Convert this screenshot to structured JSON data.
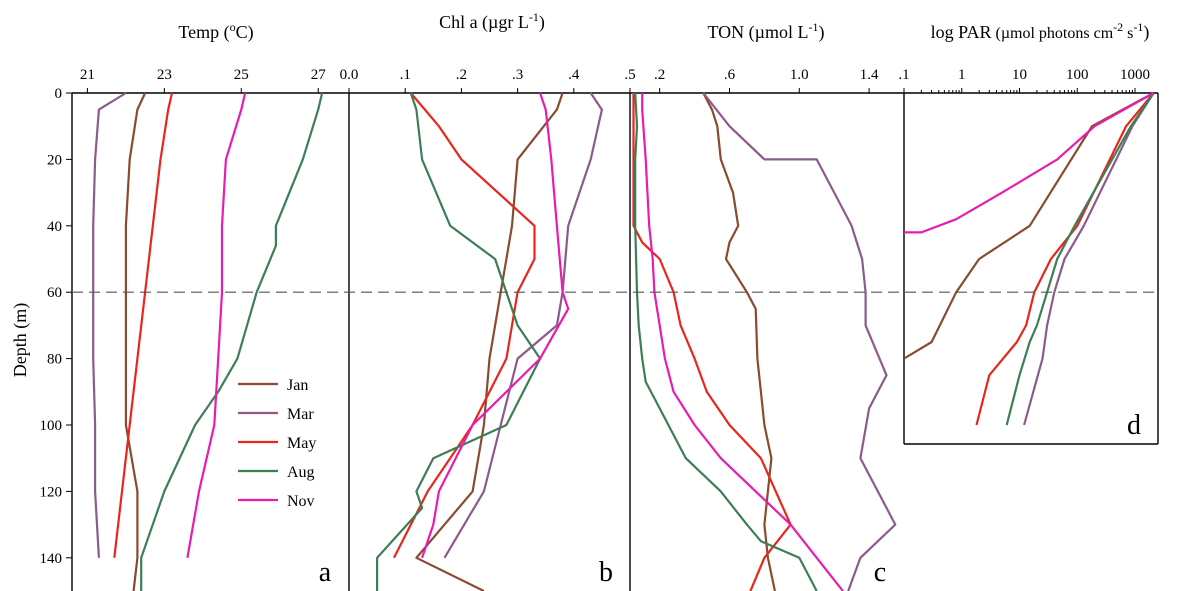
{
  "colors": {
    "Jan": "#8B4A2F",
    "Mar": "#8C5A8C",
    "May": "#E8261C",
    "Aug": "#3E7E57",
    "Nov": "#E81CB0"
  },
  "chart_data": [
    {
      "id": "a",
      "type": "line",
      "title_pre": "Temp (",
      "title_sup": "o",
      "title_post": "C)",
      "xticks": [
        "21",
        "23",
        "25",
        "27"
      ],
      "xlim": [
        20.6,
        27.8
      ],
      "ylim": [
        0,
        150
      ],
      "panel_label": "a",
      "series": [
        {
          "name": "Jan",
          "points": [
            [
              22.5,
              0
            ],
            [
              22.3,
              5
            ],
            [
              22.1,
              20
            ],
            [
              22.0,
              40
            ],
            [
              22.0,
              60
            ],
            [
              22.0,
              80
            ],
            [
              22.0,
              100
            ],
            [
              22.3,
              120
            ],
            [
              22.3,
              140
            ],
            [
              22.2,
              150
            ]
          ]
        },
        {
          "name": "Mar",
          "points": [
            [
              22.0,
              0
            ],
            [
              21.3,
              5
            ],
            [
              21.2,
              20
            ],
            [
              21.15,
              40
            ],
            [
              21.15,
              60
            ],
            [
              21.15,
              80
            ],
            [
              21.2,
              100
            ],
            [
              21.2,
              120
            ],
            [
              21.3,
              140
            ]
          ]
        },
        {
          "name": "May",
          "points": [
            [
              23.2,
              0
            ],
            [
              23.1,
              5
            ],
            [
              22.9,
              20
            ],
            [
              22.7,
              40
            ],
            [
              22.5,
              60
            ],
            [
              22.3,
              80
            ],
            [
              22.1,
              100
            ],
            [
              21.9,
              120
            ],
            [
              21.7,
              140
            ]
          ]
        },
        {
          "name": "Aug",
          "points": [
            [
              27.1,
              0
            ],
            [
              27.0,
              5
            ],
            [
              26.6,
              20
            ],
            [
              25.9,
              40
            ],
            [
              25.9,
              46
            ],
            [
              25.4,
              60
            ],
            [
              24.9,
              80
            ],
            [
              24.4,
              90
            ],
            [
              23.8,
              100
            ],
            [
              23.0,
              120
            ],
            [
              22.4,
              140
            ],
            [
              22.4,
              150
            ]
          ]
        },
        {
          "name": "Nov",
          "points": [
            [
              25.1,
              0
            ],
            [
              25.0,
              5
            ],
            [
              24.6,
              20
            ],
            [
              24.5,
              40
            ],
            [
              24.5,
              60
            ],
            [
              24.4,
              80
            ],
            [
              24.3,
              100
            ],
            [
              23.9,
              120
            ],
            [
              23.6,
              140
            ]
          ]
        }
      ]
    },
    {
      "id": "b",
      "type": "line",
      "title_pre": "Chl a (µgr L",
      "title_sup": "-1",
      "title_post": ")",
      "xticks": [
        "0.0",
        ".1",
        ".2",
        ".3",
        ".4",
        ".5"
      ],
      "xlim": [
        0.0,
        0.5
      ],
      "ylim": [
        0,
        150
      ],
      "panel_label": "b",
      "series": [
        {
          "name": "Jan",
          "points": [
            [
              0.38,
              0
            ],
            [
              0.37,
              5
            ],
            [
              0.3,
              20
            ],
            [
              0.29,
              40
            ],
            [
              0.28,
              50
            ],
            [
              0.27,
              60
            ],
            [
              0.26,
              70
            ],
            [
              0.25,
              80
            ],
            [
              0.24,
              100
            ],
            [
              0.22,
              120
            ],
            [
              0.17,
              130
            ],
            [
              0.12,
              140
            ],
            [
              0.24,
              150
            ]
          ]
        },
        {
          "name": "Mar",
          "points": [
            [
              0.43,
              0
            ],
            [
              0.45,
              5
            ],
            [
              0.43,
              20
            ],
            [
              0.39,
              40
            ],
            [
              0.38,
              60
            ],
            [
              0.37,
              70
            ],
            [
              0.3,
              80
            ],
            [
              0.27,
              100
            ],
            [
              0.24,
              120
            ],
            [
              0.17,
              140
            ]
          ]
        },
        {
          "name": "May",
          "points": [
            [
              0.11,
              0
            ],
            [
              0.16,
              10
            ],
            [
              0.2,
              20
            ],
            [
              0.33,
              40
            ],
            [
              0.33,
              50
            ],
            [
              0.3,
              60
            ],
            [
              0.28,
              80
            ],
            [
              0.22,
              100
            ],
            [
              0.18,
              110
            ],
            [
              0.14,
              120
            ],
            [
              0.08,
              140
            ]
          ]
        },
        {
          "name": "Aug",
          "points": [
            [
              0.11,
              0
            ],
            [
              0.12,
              5
            ],
            [
              0.13,
              20
            ],
            [
              0.18,
              40
            ],
            [
              0.26,
              50
            ],
            [
              0.3,
              70
            ],
            [
              0.34,
              80
            ],
            [
              0.28,
              100
            ],
            [
              0.15,
              110
            ],
            [
              0.12,
              120
            ],
            [
              0.13,
              125
            ],
            [
              0.05,
              140
            ],
            [
              0.05,
              150
            ]
          ]
        },
        {
          "name": "Nov",
          "points": [
            [
              0.34,
              0
            ],
            [
              0.35,
              5
            ],
            [
              0.36,
              20
            ],
            [
              0.37,
              40
            ],
            [
              0.38,
              60
            ],
            [
              0.39,
              65
            ],
            [
              0.34,
              80
            ],
            [
              0.28,
              90
            ],
            [
              0.22,
              100
            ],
            [
              0.16,
              120
            ],
            [
              0.15,
              130
            ],
            [
              0.13,
              140
            ]
          ]
        }
      ]
    },
    {
      "id": "c",
      "type": "line",
      "title_pre": "TON (µmol L",
      "title_sup": "-1",
      "title_post": ")",
      "xticks": [
        ".2",
        ".6",
        "1.0",
        "1.4"
      ],
      "xtick_values": [
        0.2,
        0.6,
        1.0,
        1.4
      ],
      "xlim": [
        0.03,
        1.6
      ],
      "ylim": [
        0,
        150
      ],
      "panel_label": "c",
      "series": [
        {
          "name": "Jan",
          "points": [
            [
              0.45,
              0
            ],
            [
              0.5,
              5
            ],
            [
              0.53,
              10
            ],
            [
              0.55,
              20
            ],
            [
              0.62,
              30
            ],
            [
              0.65,
              40
            ],
            [
              0.6,
              45
            ],
            [
              0.58,
              50
            ],
            [
              0.7,
              60
            ],
            [
              0.75,
              65
            ],
            [
              0.76,
              80
            ],
            [
              0.78,
              90
            ],
            [
              0.8,
              100
            ],
            [
              0.84,
              110
            ],
            [
              0.82,
              120
            ],
            [
              0.8,
              130
            ],
            [
              0.82,
              140
            ],
            [
              0.86,
              150
            ]
          ]
        },
        {
          "name": "Mar",
          "points": [
            [
              0.45,
              0
            ],
            [
              0.6,
              10
            ],
            [
              0.8,
              20
            ],
            [
              1.1,
              20
            ],
            [
              1.2,
              30
            ],
            [
              1.3,
              40
            ],
            [
              1.36,
              50
            ],
            [
              1.38,
              60
            ],
            [
              1.38,
              70
            ],
            [
              1.5,
              85
            ],
            [
              1.4,
              95
            ],
            [
              1.35,
              110
            ],
            [
              1.55,
              130
            ],
            [
              1.35,
              140
            ],
            [
              1.28,
              150
            ]
          ]
        },
        {
          "name": "May",
          "points": [
            [
              0.05,
              0
            ],
            [
              0.05,
              20
            ],
            [
              0.05,
              40
            ],
            [
              0.1,
              45
            ],
            [
              0.2,
              50
            ],
            [
              0.28,
              60
            ],
            [
              0.32,
              70
            ],
            [
              0.4,
              80
            ],
            [
              0.47,
              90
            ],
            [
              0.6,
              100
            ],
            [
              0.78,
              110
            ],
            [
              0.95,
              130
            ],
            [
              0.8,
              140
            ],
            [
              0.72,
              150
            ]
          ]
        },
        {
          "name": "Aug",
          "points": [
            [
              0.06,
              0
            ],
            [
              0.07,
              10
            ],
            [
              0.06,
              20
            ],
            [
              0.06,
              40
            ],
            [
              0.07,
              60
            ],
            [
              0.08,
              70
            ],
            [
              0.1,
              80
            ],
            [
              0.12,
              87
            ],
            [
              0.2,
              95
            ],
            [
              0.35,
              110
            ],
            [
              0.55,
              120
            ],
            [
              0.7,
              130
            ],
            [
              0.78,
              135
            ],
            [
              1.0,
              140
            ],
            [
              1.1,
              150
            ]
          ]
        },
        {
          "name": "Nov",
          "points": [
            [
              0.1,
              0
            ],
            [
              0.1,
              5
            ],
            [
              0.12,
              20
            ],
            [
              0.14,
              40
            ],
            [
              0.16,
              50
            ],
            [
              0.17,
              60
            ],
            [
              0.2,
              70
            ],
            [
              0.23,
              80
            ],
            [
              0.28,
              90
            ],
            [
              0.4,
              100
            ],
            [
              0.55,
              110
            ],
            [
              0.75,
              120
            ],
            [
              0.95,
              130
            ],
            [
              1.1,
              140
            ],
            [
              1.25,
              150
            ]
          ]
        }
      ]
    },
    {
      "id": "d",
      "type": "line",
      "title_pre": "log PAR",
      "title_mid": " (µmol photons cm",
      "title_sup1": "-2",
      "title_mid2": " s",
      "title_sup2": "-1",
      "title_post": ")",
      "xscale": "log",
      "xticks": [
        ".1",
        "1",
        "10",
        "100",
        "1000"
      ],
      "xtick_values": [
        0.1,
        1,
        10,
        100,
        1000
      ],
      "xlim": [
        0.1,
        2500
      ],
      "ylim": [
        0,
        105
      ],
      "panel_label": "d",
      "series": [
        {
          "name": "Jan",
          "points": [
            [
              2100,
              0
            ],
            [
              180,
              10
            ],
            [
              15,
              40
            ],
            [
              2,
              50
            ],
            [
              0.8,
              60
            ],
            [
              0.3,
              75
            ],
            [
              0.1,
              80
            ]
          ]
        },
        {
          "name": "Mar",
          "points": [
            [
              2100,
              0
            ],
            [
              900,
              10
            ],
            [
              130,
              40
            ],
            [
              60,
              50
            ],
            [
              40,
              60
            ],
            [
              30,
              70
            ],
            [
              25,
              80
            ],
            [
              12,
              100
            ]
          ]
        },
        {
          "name": "May",
          "points": [
            [
              2100,
              0
            ],
            [
              700,
              10
            ],
            [
              100,
              40
            ],
            [
              35,
              50
            ],
            [
              18,
              60
            ],
            [
              13,
              70
            ],
            [
              9,
              75
            ],
            [
              3,
              85
            ],
            [
              1.8,
              100
            ]
          ]
        },
        {
          "name": "Aug",
          "points": [
            [
              2100,
              0
            ],
            [
              850,
              10
            ],
            [
              90,
              40
            ],
            [
              45,
              50
            ],
            [
              30,
              60
            ],
            [
              20,
              70
            ],
            [
              15,
              75
            ],
            [
              10,
              85
            ],
            [
              6,
              100
            ]
          ]
        },
        {
          "name": "Nov",
          "points": [
            [
              2100,
              0
            ],
            [
              200,
              10
            ],
            [
              45,
              20
            ],
            [
              5,
              30
            ],
            [
              0.8,
              38
            ],
            [
              0.2,
              42
            ],
            [
              0.1,
              42
            ]
          ]
        }
      ]
    }
  ],
  "y_axis": {
    "label": "Depth (m)",
    "ticks": [
      "0",
      "20",
      "40",
      "60",
      "80",
      "100",
      "120",
      "140"
    ],
    "tick_values": [
      0,
      20,
      40,
      60,
      80,
      100,
      120,
      140
    ]
  },
  "mixed_layer_depth": 60,
  "legend": {
    "entries": [
      "Jan",
      "Mar",
      "May",
      "Aug",
      "Nov"
    ]
  }
}
